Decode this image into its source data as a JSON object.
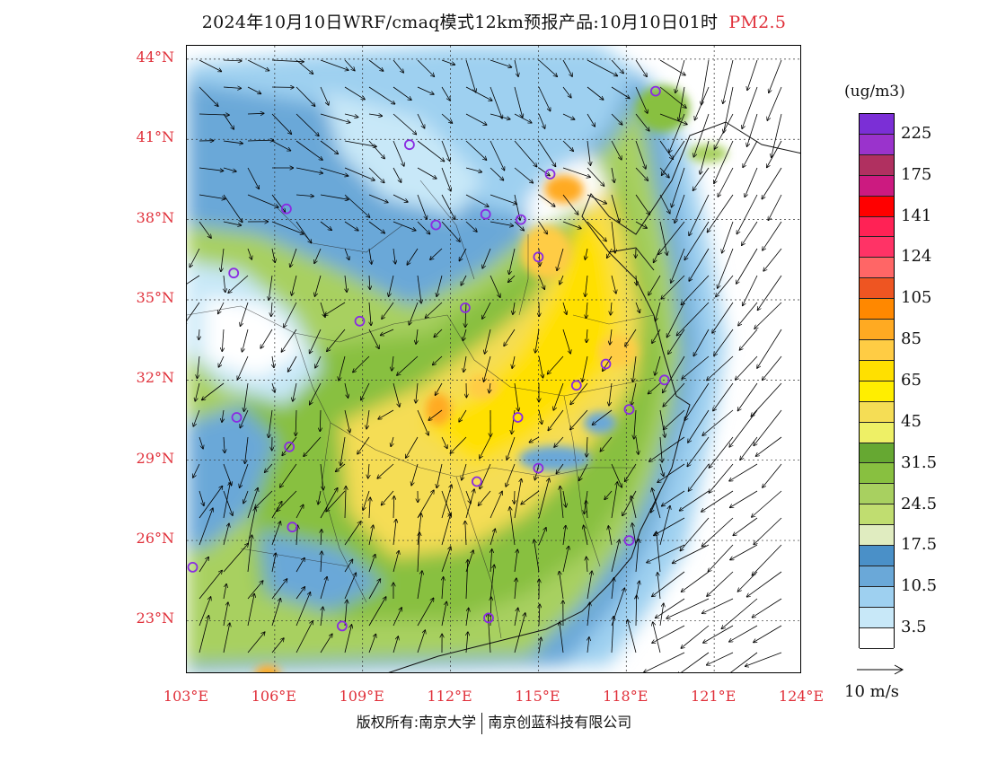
{
  "header": {
    "title": "2024年10月10日WRF/cmaq模式12km预报产品:10月10日01时",
    "species": "PM2.5"
  },
  "map": {
    "extent": {
      "lon_min": 103,
      "lon_max": 124,
      "lat_min": 21,
      "lat_max": 44.5
    },
    "lat_ticks": [
      "44°N",
      "41°N",
      "38°N",
      "35°N",
      "32°N",
      "29°N",
      "26°N",
      "23°N"
    ],
    "lon_ticks": [
      "103°E",
      "106°E",
      "109°E",
      "112°E",
      "115°E",
      "118°E",
      "121°E",
      "124°E"
    ],
    "colors": {
      "station": "#8a2be2",
      "axis_label": "#e0303a"
    },
    "stations_lonlat": [
      [
        103.2,
        25.0
      ],
      [
        104.6,
        36.0
      ],
      [
        104.7,
        30.6
      ],
      [
        106.4,
        38.4
      ],
      [
        106.5,
        29.5
      ],
      [
        106.6,
        26.5
      ],
      [
        108.9,
        34.2
      ],
      [
        108.3,
        22.8
      ],
      [
        110.6,
        40.8
      ],
      [
        111.5,
        37.8
      ],
      [
        112.5,
        34.7
      ],
      [
        112.9,
        28.2
      ],
      [
        113.2,
        38.2
      ],
      [
        113.3,
        23.1
      ],
      [
        114.3,
        30.6
      ],
      [
        114.4,
        38.0
      ],
      [
        115.0,
        36.6
      ],
      [
        115.0,
        28.7
      ],
      [
        115.4,
        39.7
      ],
      [
        116.3,
        31.8
      ],
      [
        117.3,
        32.6
      ],
      [
        118.1,
        30.9
      ],
      [
        118.1,
        26.0
      ],
      [
        119.0,
        42.8
      ],
      [
        119.3,
        32.0
      ]
    ]
  },
  "colorbar": {
    "unit": "(ug/m3)",
    "labels": [
      "225",
      "175",
      "141",
      "124",
      "105",
      "85",
      "65",
      "45",
      "31.5",
      "24.5",
      "17.5",
      "10.5",
      "3.5"
    ],
    "colors": [
      "#7b2fd6",
      "#9a33cc",
      "#b03060",
      "#cc1a80",
      "#ff0000",
      "#ff2255",
      "#ff3366",
      "#ff6666",
      "#ee5522",
      "#ff8800",
      "#ffaa22",
      "#ffcc44",
      "#ffe000",
      "#ffee00",
      "#f5dd55",
      "#eef066",
      "#66a832",
      "#88c040",
      "#a8d060",
      "#c0dd70",
      "#e0ecc0",
      "#4a90c8",
      "#6aa8d8",
      "#9ed0f0",
      "#c8e8f8",
      "#ffffff"
    ]
  },
  "legend": {
    "reference_vector": "10 m/s"
  },
  "footer": {
    "copyright_left": "版权所有:南京大学",
    "copyright_right": "南京创蓝科技有限公司"
  }
}
